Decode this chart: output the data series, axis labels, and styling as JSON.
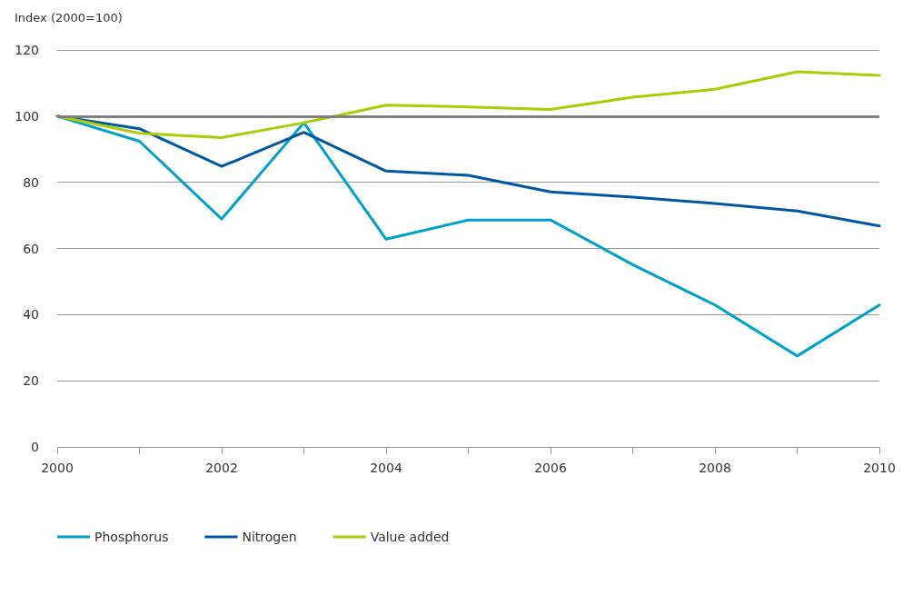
{
  "chart_data": {
    "type": "line",
    "ylabel": "Index (2000=100)",
    "x": [
      2000,
      2001,
      2002,
      2003,
      2004,
      2005,
      2006,
      2007,
      2008,
      2009,
      2010
    ],
    "series": [
      {
        "name": "Phosphorus",
        "color": "#00a1cd",
        "values": [
          100,
          92.4,
          68.9,
          98,
          62.8,
          68.6,
          68.6,
          55.1,
          42.9,
          27.5,
          42.9
        ]
      },
      {
        "name": "Nitrogen",
        "color": "#0058a3",
        "values": [
          100,
          96.2,
          84.8,
          95.1,
          83.4,
          82.1,
          77.1,
          75.5,
          73.6,
          71.3,
          66.8
        ]
      },
      {
        "name": "Value added",
        "color": "#afcb05",
        "values": [
          100,
          94.8,
          93.5,
          98,
          103.3,
          102.8,
          102,
          105.7,
          108.1,
          113.4,
          112.3
        ]
      }
    ],
    "xlim": [
      2000,
      2010
    ],
    "xticks": [
      2000,
      {
        "value": 2001,
        "label": null
      },
      2002,
      {
        "value": 2003,
        "label": null
      },
      2004,
      {
        "value": 2005,
        "label": null
      },
      2006,
      {
        "value": 2007,
        "label": null
      },
      2008,
      {
        "value": 2009,
        "label": null
      },
      2010
    ],
    "ylim": [
      0,
      120
    ],
    "yticks": [
      0,
      20,
      40,
      60,
      80,
      100,
      120
    ],
    "ref_lines": [
      {
        "axis": "y",
        "value": 100,
        "label": null,
        "color": "#808080"
      }
    ],
    "grid": "y",
    "legend": "bottom left",
    "marker": "none",
    "line_style": "solid"
  }
}
